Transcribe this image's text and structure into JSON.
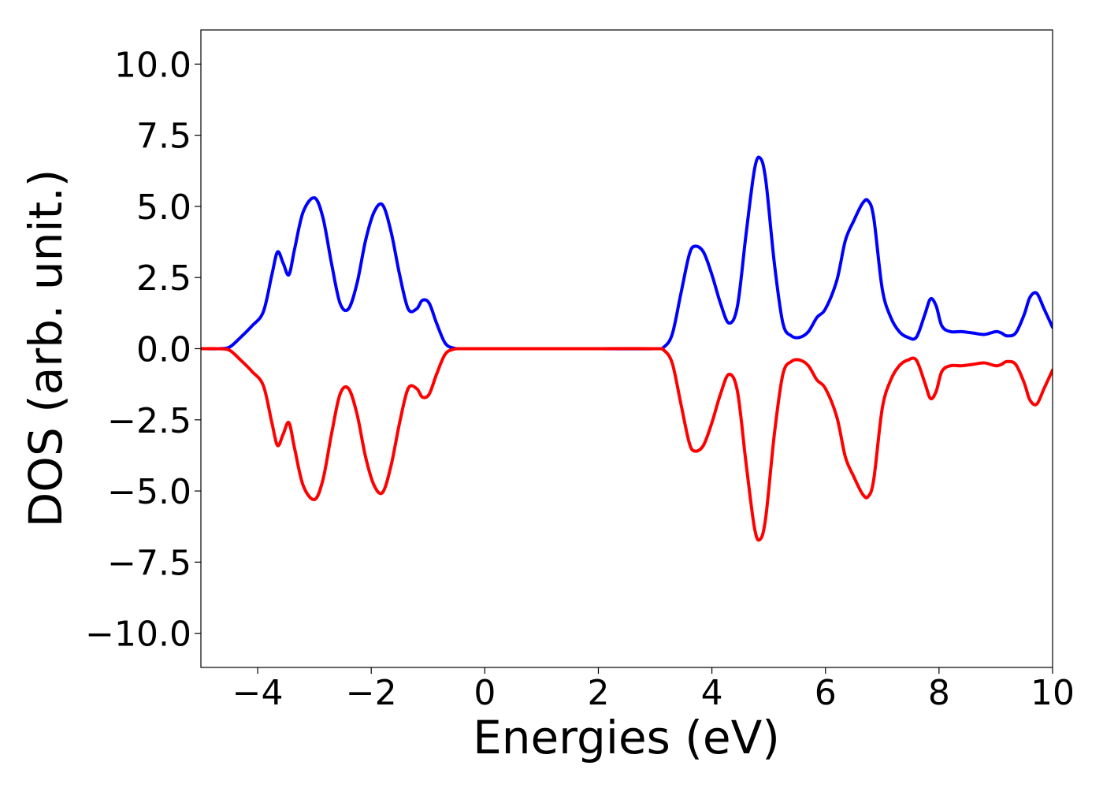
{
  "chart_data": {
    "type": "line",
    "title": "",
    "xlabel": "Energies (eV)",
    "ylabel": "DOS (arb. unit.)",
    "xlim": [
      -5,
      10
    ],
    "ylim": [
      -11.2,
      11.2
    ],
    "grid": false,
    "legend": "none",
    "x_ticks": [
      -4,
      -2,
      0,
      2,
      4,
      6,
      8,
      10
    ],
    "x_tick_labels": [
      "−4",
      "−2",
      "0",
      "2",
      "4",
      "6",
      "8",
      "10"
    ],
    "y_ticks": [
      10,
      7.5,
      5,
      2.5,
      0,
      -2.5,
      -5,
      -7.5,
      -10
    ],
    "y_tick_labels": [
      "10.0",
      "7.5",
      "5.0",
      "2.5",
      "0.0",
      "−2.5",
      "−5.0",
      "−7.5",
      "−10.0"
    ],
    "series": [
      {
        "color": "#0000ff",
        "x": [
          -5.0,
          -4.7,
          -4.5,
          -4.3,
          -4.1,
          -3.9,
          -3.75,
          -3.65,
          -3.55,
          -3.45,
          -3.35,
          -3.2,
          -3.0,
          -2.85,
          -2.7,
          -2.55,
          -2.4,
          -2.25,
          -2.1,
          -1.95,
          -1.8,
          -1.65,
          -1.5,
          -1.35,
          -1.2,
          -1.1,
          -0.98,
          -0.85,
          -0.7,
          -0.55,
          -0.4,
          0.0,
          1.0,
          2.0,
          3.0,
          3.15,
          3.3,
          3.45,
          3.6,
          3.7,
          3.85,
          4.0,
          4.15,
          4.3,
          4.45,
          4.6,
          4.75,
          4.85,
          4.95,
          5.1,
          5.25,
          5.4,
          5.55,
          5.7,
          5.85,
          6.0,
          6.2,
          6.35,
          6.5,
          6.65,
          6.75,
          6.85,
          7.0,
          7.15,
          7.3,
          7.45,
          7.6,
          7.75,
          7.85,
          7.95,
          8.05,
          8.2,
          8.4,
          8.6,
          8.8,
          9.0,
          9.1,
          9.2,
          9.35,
          9.5,
          9.6,
          9.72,
          9.85,
          10.0
        ],
        "y": [
          0.0,
          0.0,
          0.05,
          0.4,
          0.8,
          1.3,
          2.6,
          3.4,
          3.0,
          2.6,
          3.5,
          4.8,
          5.3,
          4.6,
          3.0,
          1.6,
          1.4,
          2.3,
          3.8,
          4.8,
          5.05,
          4.1,
          2.6,
          1.4,
          1.4,
          1.7,
          1.6,
          0.9,
          0.2,
          0.02,
          0.0,
          0.0,
          0.0,
          0.0,
          0.0,
          0.05,
          0.5,
          1.9,
          3.3,
          3.6,
          3.4,
          2.6,
          1.6,
          0.9,
          1.5,
          4.0,
          6.3,
          6.7,
          5.9,
          3.0,
          0.9,
          0.45,
          0.4,
          0.6,
          1.1,
          1.4,
          2.4,
          3.8,
          4.5,
          5.1,
          5.2,
          4.6,
          2.1,
          1.1,
          0.6,
          0.4,
          0.4,
          1.2,
          1.75,
          1.5,
          0.8,
          0.6,
          0.6,
          0.55,
          0.5,
          0.6,
          0.55,
          0.45,
          0.55,
          1.2,
          1.8,
          1.95,
          1.4,
          0.75
        ]
      },
      {
        "color": "#ff0000",
        "x": [
          -5.0,
          -4.7,
          -4.5,
          -4.3,
          -4.1,
          -3.9,
          -3.75,
          -3.65,
          -3.55,
          -3.45,
          -3.35,
          -3.2,
          -3.0,
          -2.85,
          -2.7,
          -2.55,
          -2.4,
          -2.25,
          -2.1,
          -1.95,
          -1.8,
          -1.65,
          -1.5,
          -1.35,
          -1.2,
          -1.1,
          -0.98,
          -0.85,
          -0.7,
          -0.55,
          -0.4,
          0.0,
          1.0,
          2.0,
          3.0,
          3.15,
          3.3,
          3.45,
          3.6,
          3.7,
          3.85,
          4.0,
          4.15,
          4.3,
          4.45,
          4.6,
          4.75,
          4.85,
          4.95,
          5.1,
          5.25,
          5.4,
          5.55,
          5.7,
          5.85,
          6.0,
          6.2,
          6.35,
          6.5,
          6.65,
          6.75,
          6.85,
          7.0,
          7.15,
          7.3,
          7.45,
          7.6,
          7.75,
          7.85,
          7.95,
          8.05,
          8.2,
          8.4,
          8.6,
          8.8,
          9.0,
          9.1,
          9.2,
          9.35,
          9.5,
          9.6,
          9.72,
          9.85,
          10.0
        ],
        "y": [
          0.0,
          0.0,
          -0.05,
          -0.4,
          -0.8,
          -1.3,
          -2.6,
          -3.4,
          -3.0,
          -2.6,
          -3.5,
          -4.8,
          -5.3,
          -4.6,
          -3.0,
          -1.6,
          -1.4,
          -2.3,
          -3.8,
          -4.8,
          -5.05,
          -4.1,
          -2.6,
          -1.4,
          -1.4,
          -1.7,
          -1.6,
          -0.9,
          -0.2,
          -0.02,
          0.0,
          0.0,
          0.0,
          0.0,
          0.0,
          -0.05,
          -0.5,
          -1.9,
          -3.3,
          -3.6,
          -3.4,
          -2.6,
          -1.6,
          -0.9,
          -1.5,
          -4.0,
          -6.3,
          -6.7,
          -5.9,
          -3.0,
          -0.9,
          -0.45,
          -0.4,
          -0.6,
          -1.1,
          -1.4,
          -2.4,
          -3.8,
          -4.5,
          -5.1,
          -5.2,
          -4.6,
          -2.1,
          -1.1,
          -0.6,
          -0.4,
          -0.4,
          -1.2,
          -1.75,
          -1.5,
          -0.8,
          -0.6,
          -0.6,
          -0.55,
          -0.5,
          -0.6,
          -0.55,
          -0.45,
          -0.55,
          -1.2,
          -1.8,
          -1.95,
          -1.4,
          -0.75
        ]
      }
    ]
  }
}
